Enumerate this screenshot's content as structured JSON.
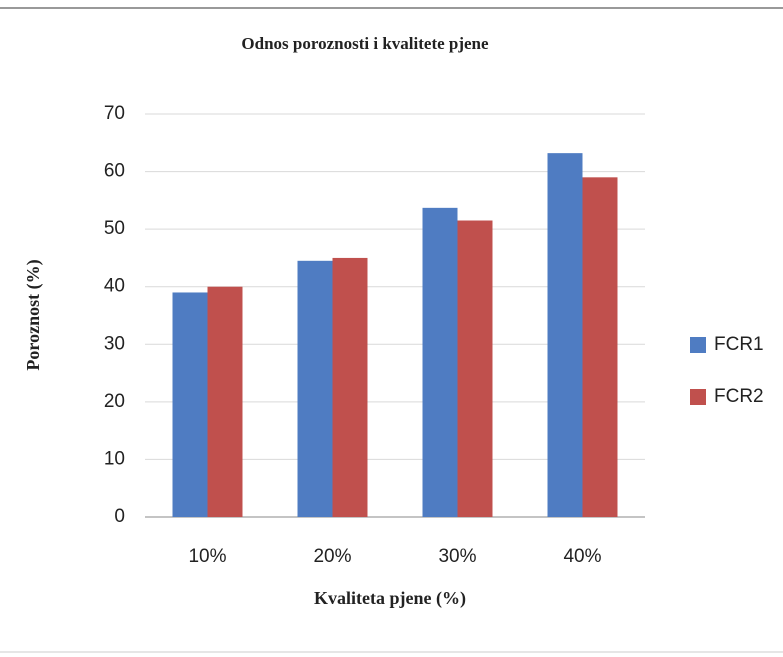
{
  "chart_data": {
    "type": "bar",
    "title": "Odnos poroznosti i kvalitete pjene",
    "x_label": "Kvaliteta pjene (%)",
    "y_label": "Poroznost (%)",
    "categories": [
      "10%",
      "20%",
      "30%",
      "40%"
    ],
    "series": [
      {
        "name": "FCR1",
        "color": "#4f7cc2",
        "values": [
          39,
          44.5,
          53.7,
          63.2
        ]
      },
      {
        "name": "FCR2",
        "color": "#c0504d",
        "values": [
          40,
          45,
          51.5,
          59
        ]
      }
    ],
    "ylim": [
      0,
      70
    ],
    "yticks": [
      0,
      10,
      20,
      30,
      40,
      50,
      60,
      70
    ],
    "grid": true,
    "legend": "right"
  }
}
